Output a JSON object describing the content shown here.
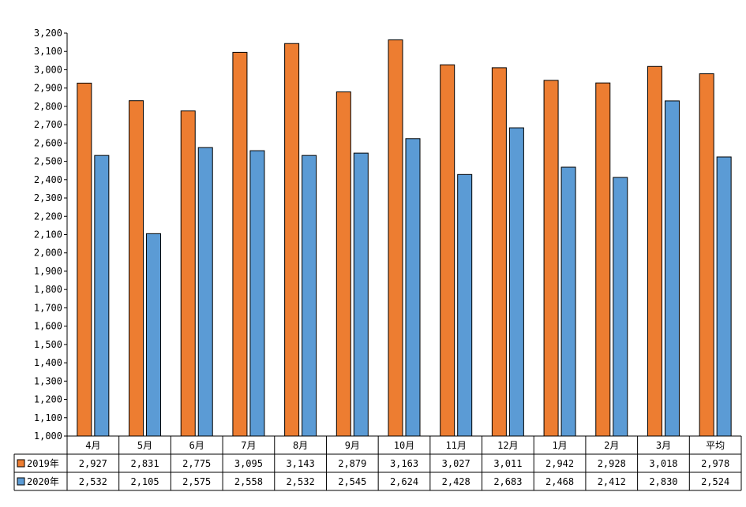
{
  "chart_data": {
    "type": "bar",
    "title": "",
    "xlabel": "",
    "ylabel": "",
    "ylim": [
      1000,
      3200
    ],
    "ytick_step": 100,
    "yticks": [
      "1,000",
      "1,100",
      "1,200",
      "1,300",
      "1,400",
      "1,500",
      "1,600",
      "1,700",
      "1,800",
      "1,900",
      "2,000",
      "2,100",
      "2,200",
      "2,300",
      "2,400",
      "2,500",
      "2,600",
      "2,700",
      "2,800",
      "2,900",
      "3,000",
      "3,100",
      "3,200"
    ],
    "categories": [
      "4月",
      "5月",
      "6月",
      "7月",
      "8月",
      "9月",
      "10月",
      "11月",
      "12月",
      "1月",
      "2月",
      "3月",
      "平均"
    ],
    "grid": false,
    "legend": "data-table-left",
    "series": [
      {
        "name": "2019年",
        "color": "#ED7D31",
        "values": [
          2927,
          2831,
          2775,
          3095,
          3143,
          2879,
          3163,
          3027,
          3011,
          2942,
          2928,
          3018,
          2978
        ],
        "labels": [
          "2,927",
          "2,831",
          "2,775",
          "3,095",
          "3,143",
          "2,879",
          "3,163",
          "3,027",
          "3,011",
          "2,942",
          "2,928",
          "3,018",
          "2,978"
        ]
      },
      {
        "name": "2020年",
        "color": "#5B9BD5",
        "values": [
          2532,
          2105,
          2575,
          2558,
          2532,
          2545,
          2624,
          2428,
          2683,
          2468,
          2412,
          2830,
          2524
        ],
        "labels": [
          "2,532",
          "2,105",
          "2,575",
          "2,558",
          "2,532",
          "2,545",
          "2,624",
          "2,428",
          "2,683",
          "2,468",
          "2,412",
          "2,830",
          "2,524"
        ]
      }
    ]
  }
}
